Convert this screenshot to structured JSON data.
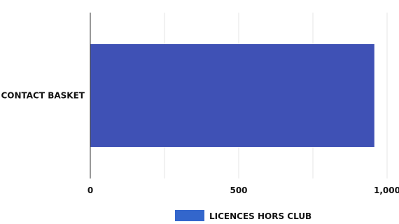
{
  "chart_data": {
    "type": "bar",
    "orientation": "horizontal",
    "categories": [
      "CONTACT BASKET"
    ],
    "series": [
      {
        "name": "LICENCES HORS CLUB",
        "values": [
          957
        ],
        "color": "#3f51b5"
      }
    ],
    "xlim": [
      0,
      1000
    ],
    "xticks": [
      0,
      500,
      1000
    ],
    "xtick_labels": [
      "0",
      "500",
      "1,000"
    ],
    "grid": true,
    "legend_position": "bottom"
  },
  "colors": {
    "bar": "#3f51b5",
    "legend_swatch": "#3366cc",
    "grid": "#e6e6e6",
    "axis": "#333333"
  }
}
